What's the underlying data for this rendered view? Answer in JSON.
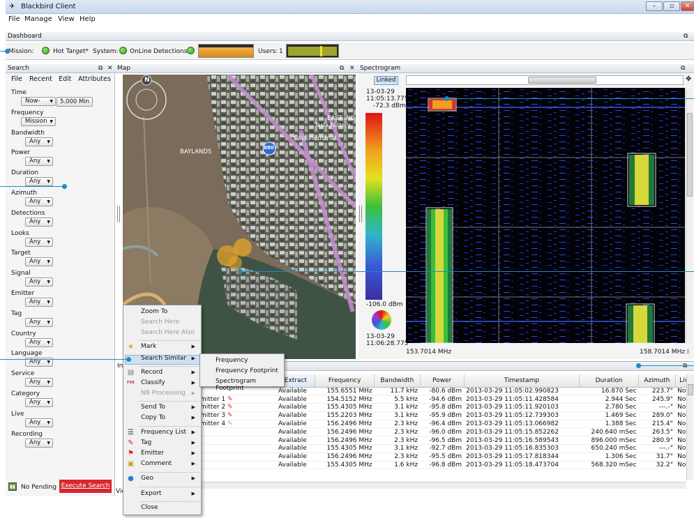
{
  "app": {
    "title": "Blackbird Client",
    "window_controls": [
      "–",
      "▫",
      "✕"
    ]
  },
  "menu": [
    "File",
    "Manage",
    "View",
    "Help"
  ],
  "dashboard": {
    "title": "Dashboard",
    "mission_label": "Mission:",
    "mission_value": "Hot Target*",
    "system_label": "System:",
    "system_value": "OnLine",
    "detections_label": "Detections:",
    "users_label": "Users:",
    "users_value": "1"
  },
  "search": {
    "title": "Search",
    "menu": [
      "File",
      "Recent",
      "Edit",
      "Attributes"
    ],
    "fields": [
      {
        "label": "Time",
        "value": "Now-"
      },
      {
        "label": "Frequency",
        "value": "Mission"
      },
      {
        "label": "Bandwidth",
        "value": "Any"
      },
      {
        "label": "Power",
        "value": "Any"
      },
      {
        "label": "Duration",
        "value": "Any"
      },
      {
        "label": "Azimuth",
        "value": "Any"
      },
      {
        "label": "Detections",
        "value": "Any"
      },
      {
        "label": "Looks",
        "value": "Any"
      },
      {
        "label": "Target",
        "value": "Any"
      },
      {
        "label": "Signal",
        "value": "Any"
      },
      {
        "label": "Emitter",
        "value": "Any"
      },
      {
        "label": "Tag",
        "value": "Any"
      },
      {
        "label": "Country",
        "value": "Any"
      },
      {
        "label": "Language",
        "value": "Any"
      },
      {
        "label": "Service",
        "value": "Any"
      },
      {
        "label": "Category",
        "value": "Any"
      },
      {
        "label": "Live",
        "value": "Any"
      },
      {
        "label": "Recording",
        "value": "Any"
      }
    ],
    "time_span": "5.000 Min",
    "pending": "No Pending",
    "execute": "Execute Search"
  },
  "map": {
    "title": "Map",
    "compass": "N",
    "labels": [
      "Tesla Factory",
      "East Industrial",
      "EAST IND",
      "BAYLANDS",
      "880"
    ]
  },
  "spectrogram": {
    "title": "Spectrogram",
    "linked": "Linked",
    "top_date": "13-03-29",
    "top_time": "11:05:13.775",
    "top_dbm": "-72.3 dBm",
    "bottom_dbm": "-106.0 dBm",
    "bottom_date": "13-03-29",
    "bottom_time": "11:06:28.775",
    "freq_left": "153.7014 MHz",
    "freq_right": "158.7014 MHz"
  },
  "table": {
    "tab": "In",
    "view_tab": "Vie",
    "columns": [
      "Extract",
      "Frequency",
      "Bandwidth",
      "Power",
      "Timestamp",
      "Duration",
      "Azimuth",
      "Live"
    ],
    "emitters": [
      "mitter 1",
      "mitter 2",
      "mitter 3",
      "mitter 4"
    ],
    "rows": [
      [
        "Available",
        "155.6551 MHz",
        "11.7 kHz",
        "-80.6 dBm",
        "2013-03-29 11:05:02.990823",
        "16.870 Sec",
        "223.7°",
        "No"
      ],
      [
        "Available",
        "154.5152 MHz",
        "5.5 kHz",
        "-94.6 dBm",
        "2013-03-29 11:05:11.428584",
        "2.944 Sec",
        "245.9°",
        "No"
      ],
      [
        "Available",
        "155.4305 MHz",
        "3.1 kHz",
        "-95.8 dBm",
        "2013-03-29 11:05:11.920103",
        "2.780 Sec",
        "---.-°",
        "No"
      ],
      [
        "Available",
        "155.2203 MHz",
        "3.1 kHz",
        "-95.9 dBm",
        "2013-03-29 11:05:12.739303",
        "1.469 Sec",
        "289.0°",
        "No"
      ],
      [
        "Available",
        "156.2496 MHz",
        "2.3 kHz",
        "-96.4 dBm",
        "2013-03-29 11:05:13.066982",
        "1.388 Sec",
        "215.4°",
        "No"
      ],
      [
        "Available",
        "156.2496 MHz",
        "2.3 kHz",
        "-96.0 dBm",
        "2013-03-29 11:05:15.852262",
        "240.640 mSec",
        "263.5°",
        "No"
      ],
      [
        "Available",
        "156.2496 MHz",
        "2.3 kHz",
        "-96.5 dBm",
        "2013-03-29 11:05:16.589543",
        "896.000 mSec",
        "280.9°",
        "No"
      ],
      [
        "Available",
        "155.4305 MHz",
        "3.1 kHz",
        "-92.7 dBm",
        "2013-03-29 11:05:16.835303",
        "650.240 mSec",
        "---.-°",
        "No"
      ],
      [
        "Available",
        "156.2496 MHz",
        "2.3 kHz",
        "-95.5 dBm",
        "2013-03-29 11:05:17.818344",
        "1.306 Sec",
        "31.7°",
        "No"
      ],
      [
        "Available",
        "155.4305 MHz",
        "1.6 kHz",
        "-96.8 dBm",
        "2013-03-29 11:05:18.473704",
        "568.320 mSec",
        "32.2°",
        "No"
      ]
    ]
  },
  "context_menu": {
    "items": [
      "Zoom To",
      "Search Here",
      "Search Here Also",
      "Mark",
      "Search Similar",
      "Record",
      "Classify",
      "NB Processing",
      "Send To",
      "Copy To",
      "Frequency List",
      "Tag",
      "Emitter",
      "Comment",
      "Geo",
      "Export",
      "Close"
    ],
    "fsk_badge": "FSK"
  },
  "submenu": {
    "items": [
      "Frequency",
      "Frequency Footprint",
      "Spectrogram Footprint"
    ]
  }
}
